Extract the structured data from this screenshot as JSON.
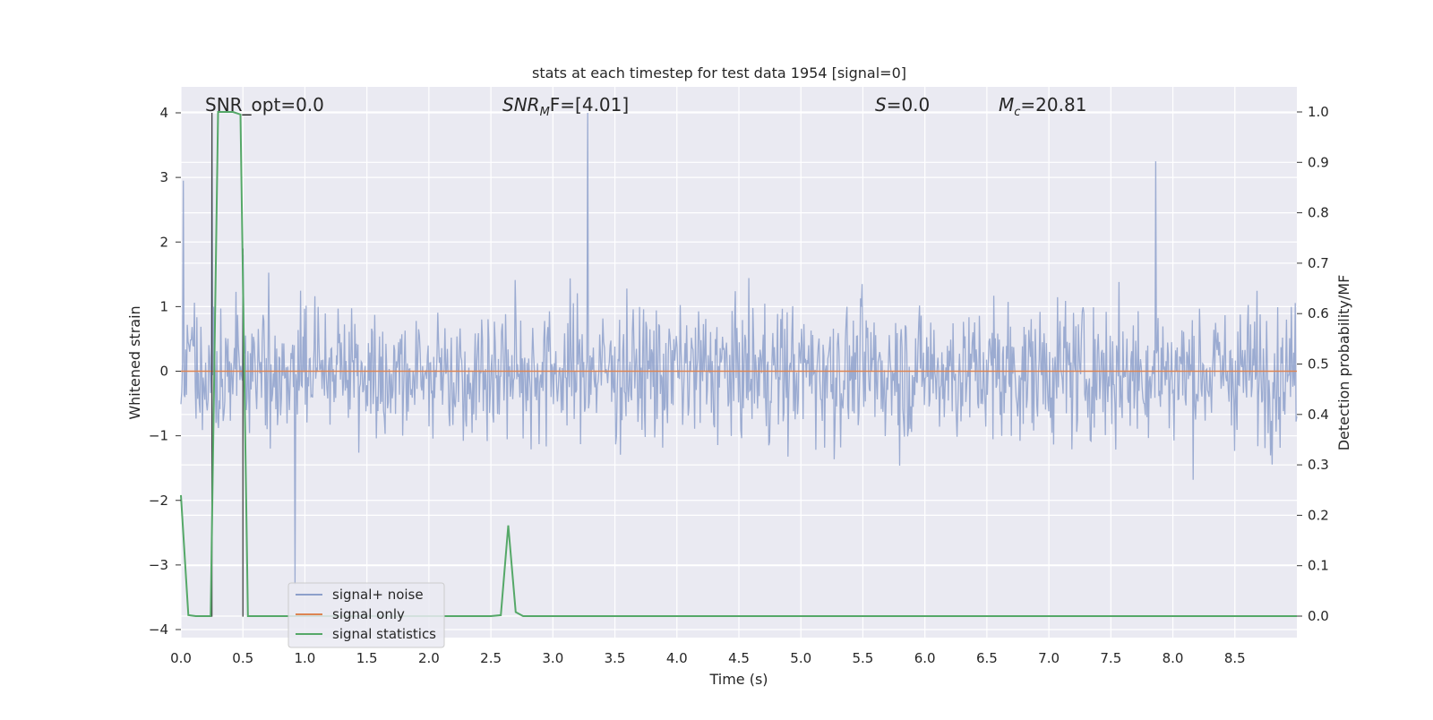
{
  "chart_data": {
    "type": "line",
    "title": "stats at each timestep for test data 1954 [signal=0]",
    "xlabel": "Time (s)",
    "ylabel_left": "Whitened strain",
    "ylabel_right": "Detection probability/MF",
    "xlim": [
      0.0,
      9.0
    ],
    "ylim_left": [
      -4.0,
      4.0
    ],
    "ylim_right": [
      0.0,
      1.0
    ],
    "x_ticks": [
      "0.0",
      "0.5",
      "1.0",
      "1.5",
      "2.0",
      "2.5",
      "3.0",
      "3.5",
      "4.0",
      "4.5",
      "5.0",
      "5.5",
      "6.0",
      "6.5",
      "7.0",
      "7.5",
      "8.0",
      "8.5"
    ],
    "y_left_ticks": [
      "4",
      "3",
      "2",
      "1",
      "0",
      "−1",
      "−2",
      "−3",
      "−4"
    ],
    "y_right_ticks": [
      "1.0",
      "0.9",
      "0.8",
      "0.7",
      "0.6",
      "0.5",
      "0.4",
      "0.3",
      "0.2",
      "0.1",
      "0.0"
    ],
    "annotations": {
      "snr_opt": "SNR_opt=0.0",
      "snr_mf_label": "SNR",
      "snr_mf_sub": "M",
      "snr_mf_rest": "F=[4.01]",
      "s_label": "S",
      "s_value": "=0.0",
      "mc_label": "M",
      "mc_sub": "c",
      "mc_value": "=20.81"
    },
    "legend": {
      "position": "lower-left",
      "entries": [
        "signal+ noise",
        "signal only",
        "signal statistics"
      ]
    },
    "colors": {
      "noise": "#8da0cb",
      "signal_only": "#dd8452",
      "statistics": "#55a868",
      "background": "#eaeaf2",
      "grid": "#ffffff"
    },
    "series": [
      {
        "name": "signal+ noise",
        "description": "whitened strain noise, approx band from -1.5 to 1.5 with spikes up to 4",
        "peaks": [
          {
            "x": 0.02,
            "y": 2.95
          },
          {
            "x": 0.25,
            "y": 4.0
          },
          {
            "x": 0.5,
            "y": 1.8
          },
          {
            "x": 3.28,
            "y": 4.0
          },
          {
            "x": 7.86,
            "y": 3.25
          },
          {
            "x": 0.92,
            "y": -3.3
          }
        ]
      },
      {
        "name": "signal only",
        "x": [
          0.0,
          9.0
        ],
        "y": [
          0.0,
          0.0
        ]
      },
      {
        "name": "signal statistics",
        "axis": "right",
        "x": [
          0.0,
          0.06,
          0.12,
          0.18,
          0.24,
          0.3,
          0.36,
          0.42,
          0.48,
          0.54,
          0.6,
          1.0,
          1.5,
          2.0,
          2.5,
          2.58,
          2.64,
          2.7,
          2.76,
          2.82,
          3.0,
          4.0,
          5.0,
          6.0,
          7.0,
          8.0,
          9.0
        ],
        "y": [
          0.24,
          0.002,
          0.0,
          0.0,
          0.0,
          1.0,
          1.0,
          1.0,
          0.995,
          0.0,
          0.0,
          0.0,
          0.0,
          0.0,
          0.0,
          0.002,
          0.18,
          0.008,
          0.0,
          0.0,
          0.0,
          0.0,
          0.0,
          0.0,
          0.0,
          0.0,
          0.0
        ]
      }
    ],
    "vertical_markers": [
      {
        "x": 0.25,
        "y_from": -3.8,
        "y_to": 4.0
      },
      {
        "x": 0.5,
        "y_from": -3.8,
        "y_to": 1.9
      }
    ]
  }
}
